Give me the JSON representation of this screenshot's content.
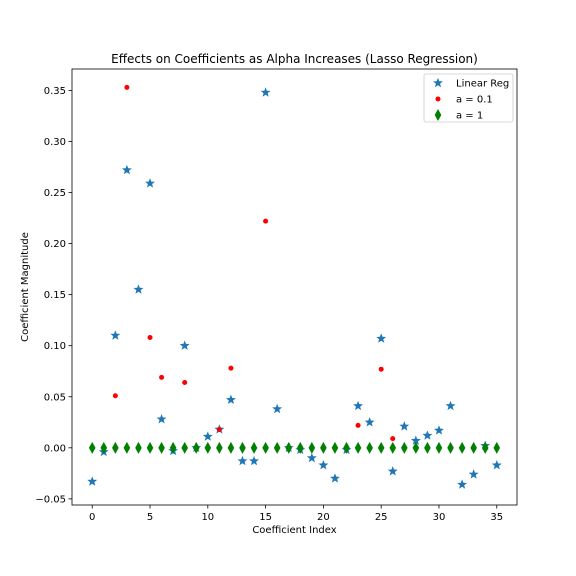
{
  "chart_data": {
    "type": "scatter",
    "title": "Effects on Coefficients as Alpha Increases (Lasso Regression)",
    "xlabel": "Coefficient Index",
    "ylabel": "Coefficient Magnitude",
    "xlim": [
      -1.75,
      36.75
    ],
    "ylim": [
      -0.056,
      0.371
    ],
    "xticks": [
      0,
      5,
      10,
      15,
      20,
      25,
      30,
      35
    ],
    "yticks": [
      -0.05,
      0.0,
      0.05,
      0.1,
      0.15,
      0.2,
      0.25,
      0.3,
      0.35
    ],
    "ytick_labels": [
      "−0.05",
      "0.00",
      "0.05",
      "0.10",
      "0.15",
      "0.20",
      "0.25",
      "0.30",
      "0.35"
    ],
    "grid": false,
    "legend_position": "top-right",
    "series": [
      {
        "name": "Linear Reg",
        "marker": "star",
        "color": "#1f77b4",
        "x": [
          0,
          1,
          2,
          3,
          4,
          5,
          6,
          7,
          8,
          9,
          10,
          11,
          12,
          13,
          14,
          15,
          16,
          17,
          18,
          19,
          20,
          21,
          22,
          23,
          24,
          25,
          26,
          27,
          28,
          29,
          30,
          31,
          32,
          33,
          34,
          35
        ],
        "y": [
          -0.033,
          -0.004,
          0.11,
          0.272,
          0.155,
          0.259,
          0.028,
          -0.003,
          0.1,
          0.0,
          0.011,
          0.018,
          0.047,
          -0.013,
          -0.013,
          0.348,
          0.038,
          0.0,
          -0.002,
          -0.01,
          -0.017,
          -0.03,
          -0.002,
          0.041,
          0.025,
          0.107,
          -0.023,
          0.021,
          0.007,
          0.012,
          0.017,
          0.041,
          -0.036,
          -0.026,
          0.002,
          -0.017
        ]
      },
      {
        "name": "a = 0.1",
        "marker": "circle",
        "color": "#ff0000",
        "x": [
          0,
          1,
          2,
          3,
          4,
          5,
          6,
          7,
          8,
          9,
          10,
          11,
          12,
          13,
          14,
          15,
          16,
          17,
          18,
          19,
          20,
          21,
          22,
          23,
          24,
          25,
          26,
          27,
          28,
          29,
          30,
          31,
          32,
          33,
          34,
          35
        ],
        "y": [
          0,
          0,
          0.051,
          0.353,
          0,
          0.108,
          0.069,
          0,
          0.064,
          0,
          0,
          0.018,
          0.078,
          0,
          0,
          0.222,
          0,
          0,
          0,
          0,
          0,
          0,
          0,
          0.022,
          0,
          0.077,
          0.009,
          0,
          0,
          0,
          0,
          0,
          0,
          0,
          0,
          0
        ]
      },
      {
        "name": "a = 1",
        "marker": "diamond",
        "color": "#008000",
        "x": [
          0,
          1,
          2,
          3,
          4,
          5,
          6,
          7,
          8,
          9,
          10,
          11,
          12,
          13,
          14,
          15,
          16,
          17,
          18,
          19,
          20,
          21,
          22,
          23,
          24,
          25,
          26,
          27,
          28,
          29,
          30,
          31,
          32,
          33,
          34,
          35
        ],
        "y": [
          0,
          0,
          0,
          0,
          0,
          0,
          0,
          0,
          0,
          0,
          0,
          0,
          0,
          0,
          0,
          0,
          0,
          0,
          0,
          0,
          0,
          0,
          0,
          0,
          0,
          0,
          0,
          0,
          0,
          0,
          0,
          0,
          0,
          0,
          0,
          0
        ]
      }
    ]
  }
}
